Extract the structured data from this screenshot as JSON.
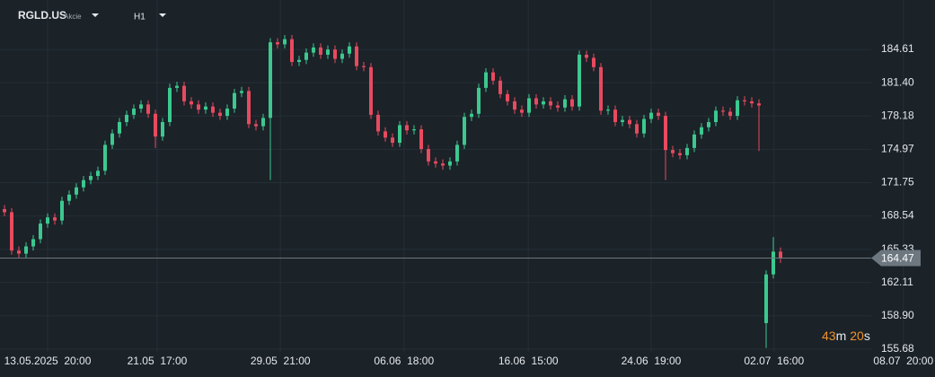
{
  "header": {
    "symbol": "RGLD.US",
    "asset_type": "Akcie",
    "timeframe": "H1"
  },
  "chart_data": {
    "type": "candlestick",
    "up_color": "#3cc88f",
    "down_color": "#e84a5f",
    "grid": true,
    "xlim": [
      -0.625,
      129.5
    ],
    "ylim": [
      154.73,
      189.38
    ],
    "xticks": [
      {
        "value": 6,
        "label": "13.05.2025  20:00"
      },
      {
        "value": 21.25,
        "label": "21.05  17:00"
      },
      {
        "value": 38.4,
        "label": "29.05  21:00"
      },
      {
        "value": 55.6,
        "label": "06.06  18:00"
      },
      {
        "value": 72.9,
        "label": "16.06  15:00"
      },
      {
        "value": 90,
        "label": "24.06  19:00"
      },
      {
        "value": 107.1,
        "label": "02.07  16:00"
      },
      {
        "value": 125.1,
        "label": "08.07  20:00"
      }
    ],
    "yticks": [
      155.68,
      {
        "value": 158.9,
        "label": "158.90"
      },
      162.11,
      165.33,
      168.54,
      171.75,
      174.97,
      178.18,
      {
        "value": 181.4,
        "label": "181.40"
      },
      184.61
    ],
    "last_price": 164.47,
    "countdown": {
      "minutes": 43,
      "minutes_unit": "m",
      "seconds": 20,
      "seconds_unit": "s"
    },
    "open": [
      169.2,
      168.9,
      165.2,
      164.9,
      165.6,
      166.3,
      167.8,
      168.4,
      168.1,
      170.0,
      170.6,
      171.3,
      172.0,
      172.4,
      172.9,
      175.4,
      176.5,
      177.6,
      178.3,
      178.9,
      179.3,
      178.4,
      176.2,
      177.6,
      180.9,
      181.1,
      179.6,
      179.3,
      178.8,
      179.1,
      178.5,
      178.2,
      178.9,
      180.4,
      180.6,
      177.4,
      177.2,
      178.0,
      185.3,
      185.1,
      185.6,
      183.4,
      183.6,
      184.3,
      184.8,
      184.1,
      184.6,
      183.7,
      184.2,
      184.9,
      183.0,
      182.9,
      178.3,
      176.7,
      176.1,
      175.6,
      177.3,
      176.8,
      176.9,
      175.0,
      173.8,
      173.6,
      173.4,
      173.8,
      175.4,
      178.1,
      178.4,
      180.9,
      182.4,
      181.6,
      180.3,
      179.6,
      178.8,
      178.5,
      179.9,
      179.3,
      179.6,
      179.2,
      179.0,
      179.8,
      179.1,
      184.1,
      183.8,
      182.9,
      178.7,
      178.8,
      177.6,
      177.8,
      177.4,
      176.5,
      177.9,
      178.5,
      178.2,
      174.9,
      174.6,
      174.4,
      175.1,
      176.4,
      177.1,
      177.6,
      178.7,
      178.6,
      178.2,
      179.7,
      179.6,
      179.4,
      158.2,
      162.9,
      165.1
    ],
    "high": [
      169.6,
      169.3,
      165.6,
      166.0,
      166.7,
      168.2,
      168.8,
      168.8,
      170.4,
      171.0,
      171.7,
      172.4,
      172.8,
      173.3,
      175.8,
      176.9,
      178.0,
      178.7,
      179.3,
      179.7,
      179.7,
      178.8,
      178.0,
      181.3,
      181.5,
      181.5,
      180.0,
      179.7,
      179.5,
      179.5,
      178.9,
      179.3,
      180.8,
      181.0,
      181.0,
      177.8,
      178.4,
      185.7,
      185.7,
      186.0,
      186.0,
      184.0,
      184.7,
      185.2,
      185.2,
      185.0,
      185.0,
      184.6,
      185.3,
      185.3,
      183.4,
      183.3,
      178.7,
      177.1,
      176.5,
      177.7,
      177.7,
      177.3,
      177.3,
      175.4,
      174.2,
      174.0,
      174.2,
      175.8,
      178.5,
      178.8,
      181.3,
      182.8,
      182.8,
      182.0,
      180.7,
      180.0,
      179.2,
      180.3,
      180.3,
      180.0,
      180.0,
      179.6,
      180.2,
      180.2,
      184.5,
      184.5,
      184.2,
      183.3,
      179.2,
      179.2,
      178.2,
      178.2,
      177.8,
      178.3,
      178.9,
      178.9,
      178.6,
      175.3,
      175.0,
      175.5,
      176.8,
      177.5,
      178.0,
      179.1,
      179.1,
      179.0,
      180.1,
      180.1,
      180.0,
      179.8,
      163.3,
      166.5,
      165.5
    ],
    "low": [
      168.5,
      164.8,
      164.5,
      164.5,
      165.2,
      165.9,
      167.4,
      167.7,
      167.7,
      169.6,
      170.2,
      170.9,
      171.6,
      172.0,
      172.5,
      175.0,
      176.1,
      177.2,
      177.9,
      178.5,
      178.0,
      175.1,
      175.8,
      177.2,
      180.5,
      179.2,
      178.9,
      178.4,
      178.4,
      178.1,
      177.8,
      177.8,
      178.5,
      180.0,
      177.0,
      176.8,
      176.8,
      172.0,
      184.7,
      184.7,
      183.0,
      183.0,
      183.2,
      183.9,
      183.7,
      183.7,
      183.3,
      183.3,
      183.8,
      182.6,
      182.5,
      177.9,
      176.3,
      175.7,
      175.2,
      175.2,
      176.4,
      176.4,
      174.6,
      173.4,
      173.2,
      173.0,
      173.0,
      173.4,
      175.0,
      177.7,
      178.0,
      180.5,
      181.2,
      179.9,
      179.2,
      178.4,
      178.1,
      178.1,
      178.9,
      178.9,
      178.8,
      178.6,
      178.6,
      178.7,
      178.7,
      183.4,
      182.5,
      178.3,
      178.3,
      177.2,
      177.2,
      177.0,
      176.1,
      176.1,
      177.5,
      177.8,
      172.0,
      174.2,
      174.0,
      174.0,
      174.7,
      176.0,
      176.7,
      177.2,
      178.2,
      177.8,
      177.8,
      179.2,
      179.0,
      174.8,
      155.8,
      162.5,
      164.0
    ],
    "close": [
      168.9,
      165.2,
      164.9,
      165.6,
      166.3,
      167.8,
      168.4,
      168.1,
      170.0,
      170.6,
      171.3,
      172.0,
      172.4,
      172.9,
      175.4,
      176.5,
      177.6,
      178.3,
      178.9,
      179.3,
      178.4,
      176.2,
      177.6,
      180.9,
      181.1,
      179.6,
      179.3,
      178.8,
      179.1,
      178.5,
      178.2,
      178.9,
      180.4,
      180.6,
      177.4,
      177.2,
      178.0,
      185.3,
      185.1,
      185.6,
      183.4,
      183.6,
      184.3,
      184.8,
      184.1,
      184.6,
      183.7,
      184.2,
      184.9,
      183.0,
      182.9,
      178.3,
      176.7,
      176.1,
      175.6,
      177.3,
      176.8,
      176.9,
      175.0,
      173.8,
      173.6,
      173.4,
      173.8,
      175.4,
      178.1,
      178.4,
      180.9,
      182.4,
      181.6,
      180.3,
      179.6,
      178.8,
      178.5,
      179.9,
      179.3,
      179.6,
      179.2,
      179.0,
      179.8,
      179.1,
      184.1,
      183.8,
      182.9,
      178.7,
      178.8,
      177.6,
      177.8,
      177.4,
      176.5,
      177.9,
      178.5,
      178.2,
      174.9,
      174.6,
      174.4,
      175.1,
      176.4,
      177.1,
      177.6,
      178.7,
      178.6,
      178.2,
      179.7,
      179.6,
      179.4,
      179.2,
      162.9,
      165.1,
      164.47
    ]
  }
}
